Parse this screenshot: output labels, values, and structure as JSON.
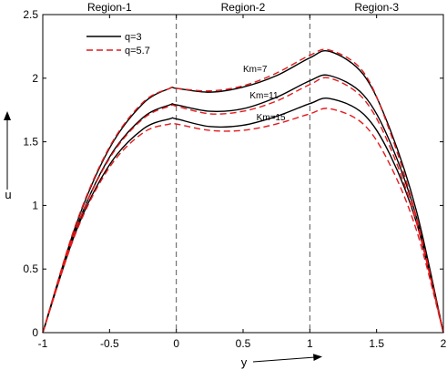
{
  "chart_data": {
    "type": "line",
    "xlabel": "y",
    "ylabel": "u",
    "xlim": [
      -1,
      2
    ],
    "ylim": [
      0,
      2.5
    ],
    "xticks": [
      -1,
      -0.5,
      0,
      0.5,
      1,
      1.5,
      2
    ],
    "xtick_labels": [
      "-1",
      "-0.5",
      "0",
      "0.5",
      "1",
      "1.5",
      "2"
    ],
    "yticks": [
      0,
      0.5,
      1,
      1.5,
      2,
      2.5
    ],
    "ytick_labels": [
      "0",
      "0.5",
      "1",
      "1.5",
      "2",
      "2.5"
    ],
    "grid": false,
    "legend_position": "top-left",
    "legend": [
      {
        "label": "q=3",
        "color": "#000000",
        "dash": "solid"
      },
      {
        "label": "q=5.7",
        "color": "#e41a1c",
        "dash": "dashed"
      }
    ],
    "region_dividers": [
      0,
      1
    ],
    "region_labels": [
      "Region-1",
      "Region-2",
      "Region-3"
    ],
    "curve_labels": [
      {
        "text": "Km=7",
        "x": 0.5,
        "y": 2.05
      },
      {
        "text": "Km=11",
        "x": 0.55,
        "y": 1.84
      },
      {
        "text": "Km=15",
        "x": 0.6,
        "y": 1.67
      }
    ],
    "series": [
      {
        "legend": "q=3",
        "km": "Km=7",
        "color": "#000000",
        "dash": "solid",
        "x": [
          -1,
          -0.75,
          -0.5,
          -0.25,
          -0.05,
          0,
          0.25,
          0.5,
          0.75,
          1,
          1.15,
          1.4,
          1.6,
          1.8,
          2
        ],
        "y": [
          0,
          0.85,
          1.45,
          1.8,
          1.92,
          1.92,
          1.89,
          1.93,
          2.02,
          2.16,
          2.21,
          2.03,
          1.6,
          0.95,
          0
        ]
      },
      {
        "legend": "q=3",
        "km": "Km=11",
        "color": "#000000",
        "dash": "solid",
        "x": [
          -1,
          -0.75,
          -0.5,
          -0.25,
          -0.05,
          0,
          0.25,
          0.5,
          0.75,
          1,
          1.15,
          1.4,
          1.6,
          1.8,
          2
        ],
        "y": [
          0,
          0.82,
          1.38,
          1.69,
          1.79,
          1.79,
          1.74,
          1.76,
          1.85,
          1.98,
          2.02,
          1.87,
          1.5,
          0.9,
          0
        ]
      },
      {
        "legend": "q=3",
        "km": "Km=15",
        "color": "#000000",
        "dash": "solid",
        "x": [
          -1,
          -0.75,
          -0.5,
          -0.25,
          -0.05,
          0,
          0.25,
          0.5,
          0.75,
          1,
          1.15,
          1.4,
          1.6,
          1.8,
          2
        ],
        "y": [
          0,
          0.8,
          1.32,
          1.6,
          1.68,
          1.68,
          1.62,
          1.63,
          1.7,
          1.8,
          1.84,
          1.72,
          1.4,
          0.86,
          0
        ]
      },
      {
        "legend": "q=5.7",
        "km": "Km=7",
        "color": "#e41a1c",
        "dash": "dashed",
        "x": [
          -1,
          -0.75,
          -0.5,
          -0.25,
          -0.05,
          0,
          0.25,
          0.5,
          0.75,
          1,
          1.15,
          1.4,
          1.6,
          1.8,
          2
        ],
        "y": [
          0,
          0.86,
          1.46,
          1.81,
          1.92,
          1.92,
          1.9,
          1.94,
          2.04,
          2.18,
          2.22,
          2.05,
          1.58,
          0.9,
          0
        ]
      },
      {
        "legend": "q=5.7",
        "km": "Km=11",
        "color": "#e41a1c",
        "dash": "dashed",
        "x": [
          -1,
          -0.75,
          -0.5,
          -0.25,
          -0.05,
          0,
          0.25,
          0.5,
          0.75,
          1,
          1.15,
          1.4,
          1.6,
          1.8,
          2
        ],
        "y": [
          0,
          0.82,
          1.37,
          1.68,
          1.78,
          1.78,
          1.72,
          1.74,
          1.82,
          1.95,
          2.0,
          1.84,
          1.46,
          0.86,
          0
        ]
      },
      {
        "legend": "q=5.7",
        "km": "Km=15",
        "color": "#e41a1c",
        "dash": "dashed",
        "x": [
          -1,
          -0.75,
          -0.5,
          -0.25,
          -0.05,
          0,
          0.25,
          0.5,
          0.75,
          1,
          1.15,
          1.4,
          1.6,
          1.8,
          2
        ],
        "y": [
          0,
          0.79,
          1.3,
          1.57,
          1.64,
          1.64,
          1.59,
          1.59,
          1.64,
          1.72,
          1.76,
          1.64,
          1.32,
          0.8,
          0
        ]
      }
    ]
  }
}
